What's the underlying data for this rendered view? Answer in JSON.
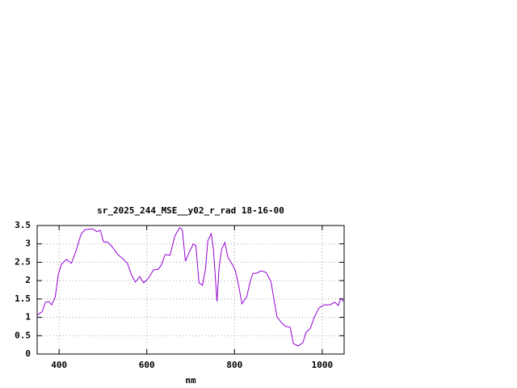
{
  "chart_data": {
    "type": "line",
    "title": "sr_2025_244_MSE__y02_r_rad 18-16-00",
    "x_label": "nm",
    "x": [
      350,
      361,
      369,
      376,
      383,
      391,
      398,
      405,
      417,
      428,
      439,
      450,
      459,
      477,
      486,
      494,
      501,
      512,
      523,
      534,
      545,
      556,
      565,
      574,
      584,
      593,
      604,
      615,
      626,
      633,
      642,
      653,
      664,
      675,
      681,
      688,
      697,
      706,
      712,
      719,
      727,
      734,
      739,
      747,
      752,
      760,
      765,
      771,
      778,
      785,
      795,
      802,
      809,
      817,
      828,
      835,
      842,
      850,
      861,
      872,
      883,
      890,
      897,
      908,
      917,
      927,
      934,
      945,
      956,
      963,
      973,
      982,
      993,
      1004,
      1018,
      1029,
      1037,
      1042,
      1048
    ],
    "series": [
      {
        "name": "sr_2025_244_MSE__y02_r_rad",
        "color": "#9400d3",
        "values": [
          1.06,
          1.15,
          1.41,
          1.43,
          1.34,
          1.54,
          2.16,
          2.44,
          2.58,
          2.47,
          2.82,
          3.26,
          3.39,
          3.41,
          3.33,
          3.37,
          3.06,
          3.04,
          2.89,
          2.71,
          2.6,
          2.47,
          2.16,
          1.96,
          2.11,
          1.94,
          2.07,
          2.29,
          2.31,
          2.42,
          2.71,
          2.69,
          3.22,
          3.44,
          3.39,
          2.53,
          2.78,
          3.0,
          2.95,
          1.94,
          1.87,
          2.33,
          3.08,
          3.28,
          2.86,
          1.43,
          2.38,
          2.86,
          3.04,
          2.64,
          2.44,
          2.27,
          1.89,
          1.37,
          1.56,
          1.94,
          2.2,
          2.2,
          2.27,
          2.22,
          1.98,
          1.5,
          1.01,
          0.84,
          0.75,
          0.73,
          0.29,
          0.22,
          0.31,
          0.59,
          0.7,
          1.01,
          1.26,
          1.34,
          1.34,
          1.41,
          1.32,
          1.52,
          1.43
        ]
      }
    ],
    "xlim": [
      350,
      1050
    ],
    "ylim": [
      0,
      3.5
    ],
    "xticks": [
      400,
      600,
      800,
      1000
    ],
    "yticks": [
      0,
      0.5,
      1,
      1.5,
      2,
      2.5,
      3,
      3.5
    ],
    "grid": true
  }
}
